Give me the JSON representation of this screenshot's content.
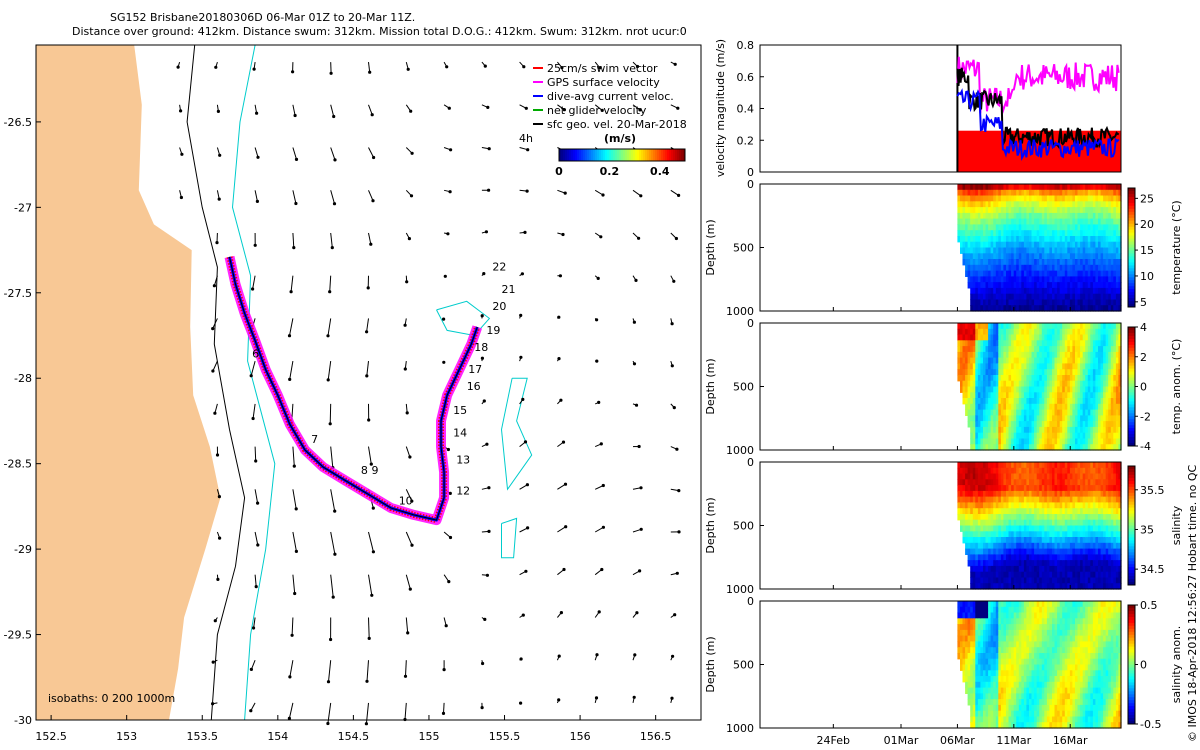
{
  "chart_data": [
    {
      "type": "map",
      "title_line1": "SG152 Brisbane20180306D 06-Mar 01Z to 20-Mar 11Z.",
      "title_line2": "Distance over ground: 412km. Distance swum: 312km. Mission total D.O.G.: 412km. Swum: 312km. nrot ucur:0",
      "xlim": [
        152.4,
        156.8
      ],
      "ylim": [
        -30.0,
        -26.05
      ],
      "xticks": [
        152.5,
        153,
        153.5,
        154,
        154.5,
        155,
        155.5,
        156,
        156.5
      ],
      "yticks": [
        -26.5,
        -27,
        -27.5,
        -28,
        -28.5,
        -29,
        -29.5,
        -30
      ],
      "legend": [
        {
          "label": "25cm/s swim vector",
          "color": "#ff0000"
        },
        {
          "label": "GPS surface velocity",
          "color": "#ff00ff"
        },
        {
          "label": "dive-avg current veloc.",
          "color": "#0000ff"
        },
        {
          "label": "net glider velocity",
          "color": "#00aa00"
        },
        {
          "label": "sfc geo. vel. 20-Mar-2018",
          "color": "#000000"
        }
      ],
      "colorbar": {
        "title": "(m/s)",
        "ticks": [
          "0",
          "0.2",
          "0.4"
        ],
        "range": [
          0,
          0.5
        ]
      },
      "timestep_label": "4h",
      "isobath_note": "isobaths: 0   200  1000m",
      "track": [
        [
          153.68,
          -27.29
        ],
        [
          153.72,
          -27.45
        ],
        [
          153.78,
          -27.62
        ],
        [
          153.85,
          -27.78
        ],
        [
          153.92,
          -27.95
        ],
        [
          154.0,
          -28.1
        ],
        [
          154.08,
          -28.27
        ],
        [
          154.18,
          -28.42
        ],
        [
          154.3,
          -28.52
        ],
        [
          154.45,
          -28.6
        ],
        [
          154.6,
          -28.68
        ],
        [
          154.75,
          -28.76
        ],
        [
          154.9,
          -28.8
        ],
        [
          155.05,
          -28.83
        ],
        [
          155.1,
          -28.7
        ],
        [
          155.1,
          -28.55
        ],
        [
          155.08,
          -28.4
        ],
        [
          155.08,
          -28.25
        ],
        [
          155.12,
          -28.1
        ],
        [
          155.2,
          -27.95
        ],
        [
          155.28,
          -27.8
        ],
        [
          155.32,
          -27.7
        ]
      ],
      "day_labels": [
        {
          "label": "6",
          "lon": 153.83,
          "lat": -27.88
        },
        {
          "label": "7",
          "lon": 154.22,
          "lat": -28.38
        },
        {
          "label": "8",
          "lon": 154.55,
          "lat": -28.56
        },
        {
          "label": "9",
          "lon": 154.62,
          "lat": -28.56
        },
        {
          "label": "10",
          "lon": 154.8,
          "lat": -28.74
        },
        {
          "label": "12",
          "lon": 155.18,
          "lat": -28.68
        },
        {
          "label": "13",
          "lon": 155.18,
          "lat": -28.5
        },
        {
          "label": "14",
          "lon": 155.16,
          "lat": -28.34
        },
        {
          "label": "15",
          "lon": 155.16,
          "lat": -28.21
        },
        {
          "label": "16",
          "lon": 155.25,
          "lat": -28.07
        },
        {
          "label": "17",
          "lon": 155.26,
          "lat": -27.97
        },
        {
          "label": "18",
          "lon": 155.3,
          "lat": -27.84
        },
        {
          "label": "19",
          "lon": 155.38,
          "lat": -27.74
        },
        {
          "label": "20",
          "lon": 155.42,
          "lat": -27.6
        },
        {
          "label": "21",
          "lon": 155.48,
          "lat": -27.5
        },
        {
          "label": "22",
          "lon": 155.42,
          "lat": -27.37
        }
      ]
    },
    {
      "type": "line",
      "ylabel": "velocity magnitude (m/s)",
      "ylim": [
        0,
        0.8
      ],
      "yticks": [
        "0",
        "0.2",
        "0.4",
        "0.6",
        "0.8"
      ],
      "xlim_days": [
        -17.5,
        14.5
      ],
      "series": [
        {
          "name": "red fill",
          "color": "#ff0000",
          "level": 0.26
        },
        {
          "name": "black",
          "color": "#000000"
        },
        {
          "name": "magenta",
          "color": "#ff00ff"
        },
        {
          "name": "blue",
          "color": "#0000ff"
        }
      ]
    },
    {
      "type": "heatmap",
      "ylabel": "Depth (m)",
      "cblabel": "temperature (°C)",
      "cbticks": [
        "25",
        "20",
        "15",
        "10",
        "5"
      ],
      "clim": [
        4,
        27
      ]
    },
    {
      "type": "heatmap",
      "ylabel": "Depth (m)",
      "cblabel": "temp. anom. (°C)",
      "cbticks": [
        "4",
        "2",
        "0",
        "-2",
        "-4"
      ],
      "clim": [
        -4,
        4
      ]
    },
    {
      "type": "heatmap",
      "ylabel": "Depth (m)",
      "cblabel": "salinity",
      "cbticks": [
        "35.5",
        "35",
        "34.5"
      ],
      "clim": [
        34.3,
        35.8
      ]
    },
    {
      "type": "heatmap",
      "ylabel": "Depth (m)",
      "cblabel": "salinity anom.",
      "cbticks": [
        "0.5",
        "0",
        "-0.5"
      ],
      "clim": [
        -0.5,
        0.5
      ]
    }
  ],
  "depth_ticks": [
    "0",
    "500",
    "1000"
  ],
  "date_ticks": [
    "24Feb",
    "01Mar",
    "06Mar",
    "11Mar",
    "16Mar"
  ],
  "footer": "© IMOS 18-Apr-2018 12:56:27 Hobart time. no QC"
}
